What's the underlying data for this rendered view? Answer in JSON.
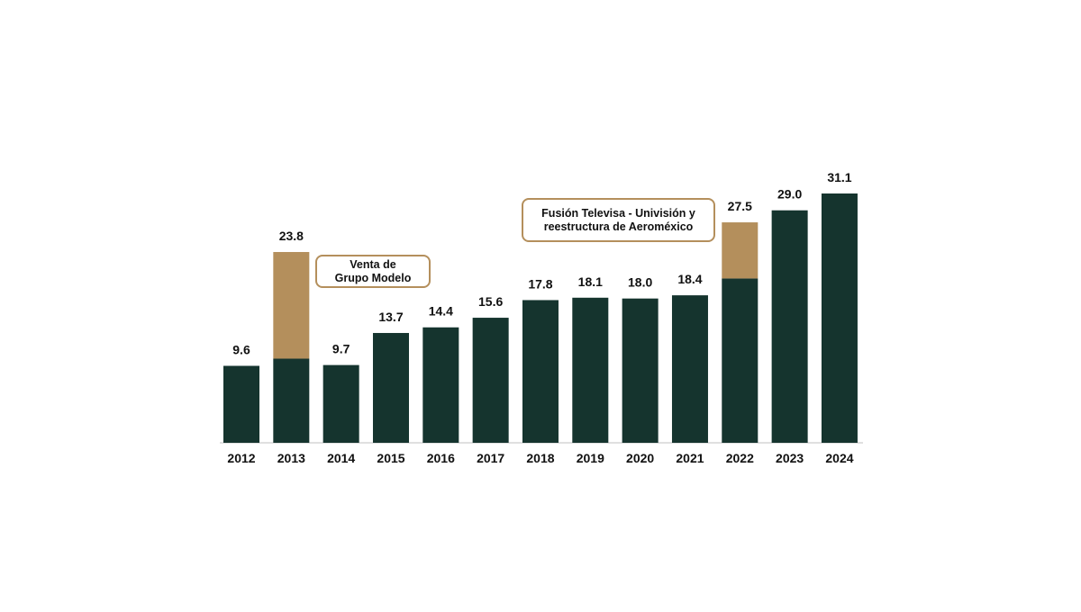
{
  "chart_data": {
    "type": "bar",
    "categories": [
      "2012",
      "2013",
      "2014",
      "2015",
      "2016",
      "2017",
      "2018",
      "2019",
      "2020",
      "2021",
      "2022",
      "2023",
      "2024"
    ],
    "value_labels": [
      "9.6",
      "23.8",
      "9.7",
      "13.7",
      "14.4",
      "15.6",
      "17.8",
      "18.1",
      "18.0",
      "18.4",
      "27.5",
      "29.0",
      "31.1"
    ],
    "series": [
      {
        "values": [
          9.6,
          10.5,
          9.7,
          13.7,
          14.4,
          15.6,
          17.8,
          18.1,
          18.0,
          18.4,
          20.5,
          29.0,
          31.1
        ]
      },
      {
        "values": [
          0,
          13.3,
          0,
          0,
          0,
          0,
          0,
          0,
          0,
          0,
          7.0,
          0,
          0
        ]
      }
    ],
    "ylim": [
      0,
      31.1
    ],
    "grid": false,
    "colors": {
      "base": "#15342e",
      "extraordinary": "#b48f5c",
      "axis": "#d6d6d6"
    },
    "annotations": [
      {
        "id": "modelo",
        "lines": [
          "Venta de",
          "Grupo Modelo"
        ],
        "category": "2013"
      },
      {
        "id": "televisa",
        "lines": [
          "Fusión Televisa - Univisión y",
          "reestructura de Aeroméxico"
        ],
        "category": "2022"
      }
    ]
  }
}
